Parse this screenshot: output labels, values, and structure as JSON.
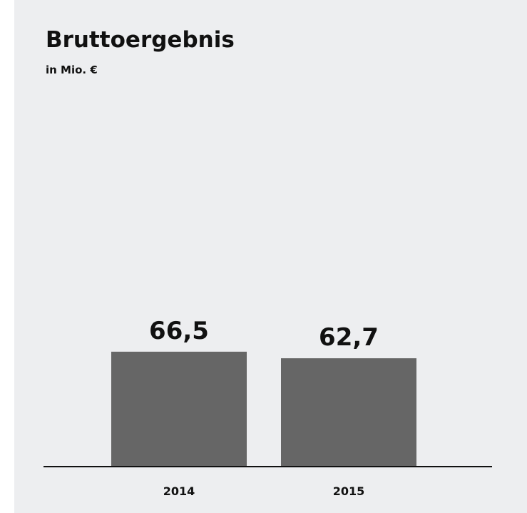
{
  "chart_data": {
    "type": "bar",
    "title": "Bruttoergebnis",
    "subtitle": "in Mio. €",
    "categories": [
      "2014",
      "2015"
    ],
    "values": [
      66.5,
      62.7
    ],
    "value_labels": [
      "66,5",
      "62,7"
    ],
    "xlabel": "",
    "ylabel": "",
    "ylim": [
      0,
      270
    ],
    "grid": false,
    "legend": "none"
  },
  "colors": {
    "panel_background": "#edeef0",
    "bar": "#666666",
    "text": "#111111",
    "axis": "#111111"
  }
}
